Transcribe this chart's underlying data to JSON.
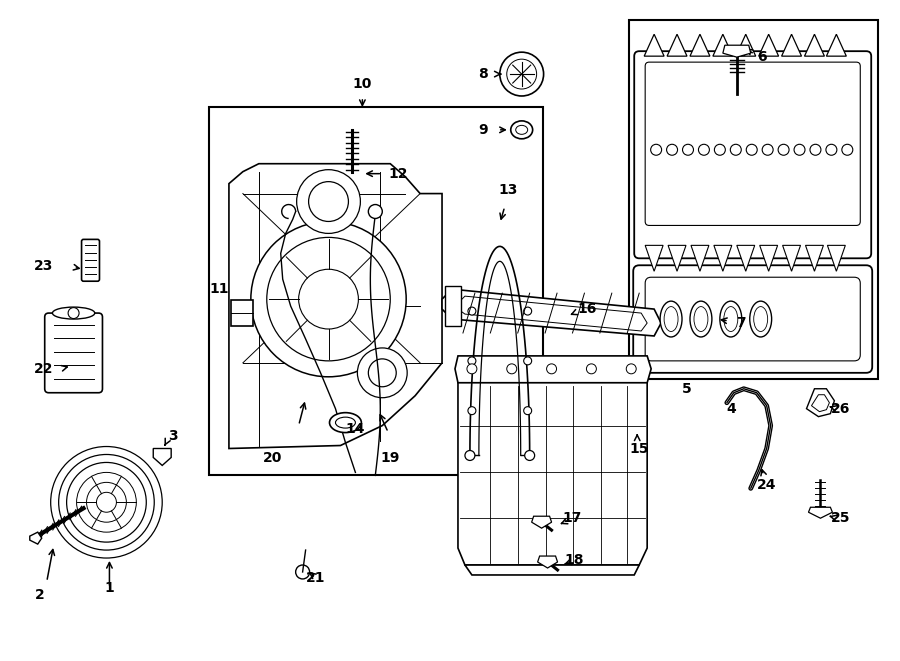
{
  "bg_color": "#ffffff",
  "lc": "#000000",
  "tc": "#000000",
  "fw": 9.0,
  "fh": 6.61,
  "dpi": 100
}
